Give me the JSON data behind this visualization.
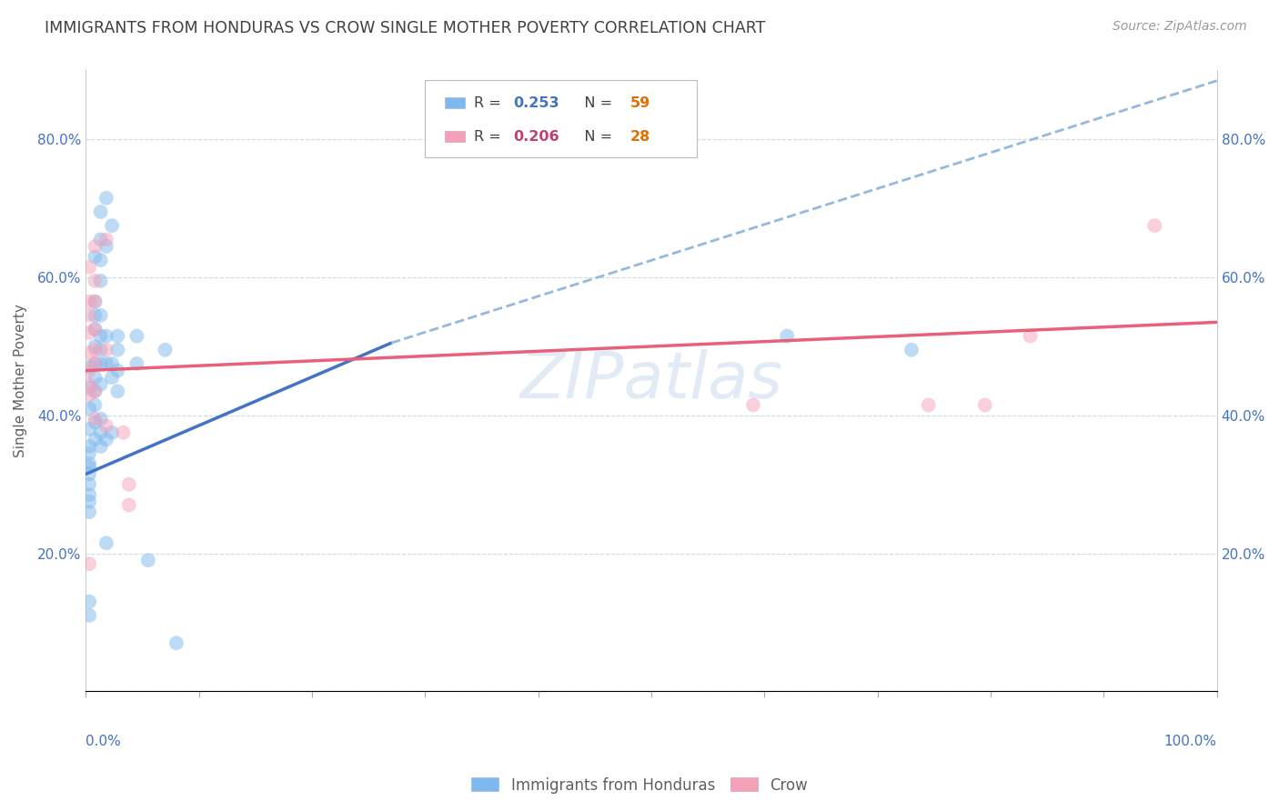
{
  "title": "IMMIGRANTS FROM HONDURAS VS CROW SINGLE MOTHER POVERTY CORRELATION CHART",
  "source": "Source: ZipAtlas.com",
  "ylabel": "Single Mother Poverty",
  "watermark": "ZIPatlas",
  "legend_blue_r": "0.253",
  "legend_blue_n": "59",
  "legend_pink_r": "0.206",
  "legend_pink_n": "28",
  "xlim": [
    0.0,
    1.0
  ],
  "ylim": [
    0.0,
    0.9
  ],
  "xtick_vals": [
    0.0,
    0.1,
    0.2,
    0.3,
    0.4,
    0.5,
    0.6,
    0.7,
    0.8,
    0.9,
    1.0
  ],
  "ytick_vals": [
    0.0,
    0.2,
    0.4,
    0.6,
    0.8
  ],
  "ytick_labels": [
    "",
    "20.0%",
    "40.0%",
    "60.0%",
    "80.0%"
  ],
  "xtick_labels_left": [
    "0.0%",
    "",
    "",
    "",
    "",
    "",
    "",
    "",
    "",
    "",
    ""
  ],
  "xtick_labels_right_only": "100.0%",
  "blue_color": "#7EB8EE",
  "pink_color": "#F4A0B8",
  "blue_line_color": "#4472C4",
  "pink_line_color": "#E8607A",
  "dashed_line_color": "#96B8DC",
  "title_color": "#404040",
  "axis_label_color": "#606060",
  "tick_label_color": "#4472C4",
  "grid_color": "#C8D4E8",
  "blue_points": [
    [
      0.003,
      0.47
    ],
    [
      0.003,
      0.44
    ],
    [
      0.003,
      0.41
    ],
    [
      0.003,
      0.38
    ],
    [
      0.003,
      0.355
    ],
    [
      0.003,
      0.345
    ],
    [
      0.003,
      0.33
    ],
    [
      0.003,
      0.325
    ],
    [
      0.003,
      0.315
    ],
    [
      0.003,
      0.3
    ],
    [
      0.003,
      0.285
    ],
    [
      0.003,
      0.275
    ],
    [
      0.003,
      0.26
    ],
    [
      0.003,
      0.13
    ],
    [
      0.003,
      0.11
    ],
    [
      0.008,
      0.63
    ],
    [
      0.008,
      0.565
    ],
    [
      0.008,
      0.545
    ],
    [
      0.008,
      0.525
    ],
    [
      0.008,
      0.5
    ],
    [
      0.008,
      0.475
    ],
    [
      0.008,
      0.455
    ],
    [
      0.008,
      0.435
    ],
    [
      0.008,
      0.415
    ],
    [
      0.008,
      0.39
    ],
    [
      0.008,
      0.365
    ],
    [
      0.013,
      0.695
    ],
    [
      0.013,
      0.655
    ],
    [
      0.013,
      0.625
    ],
    [
      0.013,
      0.595
    ],
    [
      0.013,
      0.545
    ],
    [
      0.013,
      0.515
    ],
    [
      0.013,
      0.495
    ],
    [
      0.013,
      0.475
    ],
    [
      0.013,
      0.445
    ],
    [
      0.013,
      0.395
    ],
    [
      0.013,
      0.375
    ],
    [
      0.013,
      0.355
    ],
    [
      0.018,
      0.715
    ],
    [
      0.018,
      0.645
    ],
    [
      0.018,
      0.515
    ],
    [
      0.018,
      0.475
    ],
    [
      0.018,
      0.365
    ],
    [
      0.018,
      0.215
    ],
    [
      0.023,
      0.675
    ],
    [
      0.023,
      0.475
    ],
    [
      0.023,
      0.455
    ],
    [
      0.023,
      0.375
    ],
    [
      0.028,
      0.515
    ],
    [
      0.028,
      0.495
    ],
    [
      0.028,
      0.465
    ],
    [
      0.028,
      0.435
    ],
    [
      0.045,
      0.515
    ],
    [
      0.045,
      0.475
    ],
    [
      0.055,
      0.19
    ],
    [
      0.07,
      0.495
    ],
    [
      0.08,
      0.07
    ],
    [
      0.62,
      0.515
    ],
    [
      0.73,
      0.495
    ]
  ],
  "pink_points": [
    [
      0.003,
      0.615
    ],
    [
      0.003,
      0.565
    ],
    [
      0.003,
      0.545
    ],
    [
      0.003,
      0.52
    ],
    [
      0.003,
      0.49
    ],
    [
      0.003,
      0.465
    ],
    [
      0.003,
      0.445
    ],
    [
      0.003,
      0.43
    ],
    [
      0.003,
      0.185
    ],
    [
      0.008,
      0.645
    ],
    [
      0.008,
      0.595
    ],
    [
      0.008,
      0.565
    ],
    [
      0.008,
      0.525
    ],
    [
      0.008,
      0.495
    ],
    [
      0.008,
      0.475
    ],
    [
      0.008,
      0.435
    ],
    [
      0.008,
      0.395
    ],
    [
      0.018,
      0.655
    ],
    [
      0.018,
      0.495
    ],
    [
      0.018,
      0.385
    ],
    [
      0.033,
      0.375
    ],
    [
      0.038,
      0.3
    ],
    [
      0.038,
      0.27
    ],
    [
      0.59,
      0.415
    ],
    [
      0.745,
      0.415
    ],
    [
      0.795,
      0.415
    ],
    [
      0.835,
      0.515
    ],
    [
      0.945,
      0.675
    ]
  ],
  "blue_line_solid": {
    "x0": 0.0,
    "y0": 0.315,
    "x1": 0.27,
    "y1": 0.505
  },
  "blue_line_dashed": {
    "x0": 0.27,
    "y0": 0.505,
    "x1": 1.0,
    "y1": 0.885
  },
  "pink_line": {
    "x0": 0.0,
    "y0": 0.465,
    "x1": 1.0,
    "y1": 0.535
  },
  "marker_size": 130,
  "marker_alpha": 0.5,
  "title_fontsize": 12.5,
  "source_fontsize": 10,
  "axis_fontsize": 11,
  "tick_fontsize": 11,
  "watermark_fontsize": 52,
  "watermark_color": "#B8CCE8",
  "watermark_alpha": 0.4,
  "background_color": "#FFFFFF"
}
